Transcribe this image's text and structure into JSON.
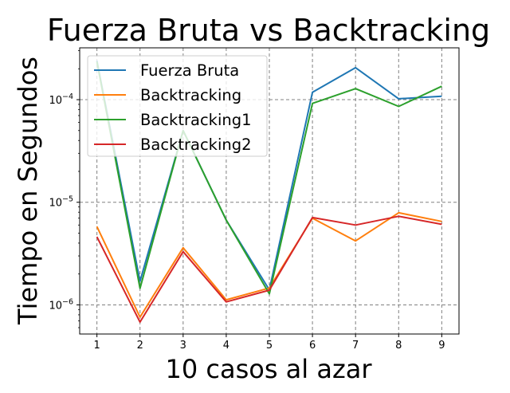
{
  "chart_data": {
    "type": "line",
    "title": "Fuerza Bruta vs Backtracking",
    "xlabel": "10 casos al azar",
    "ylabel": "Tiempo en Segundos",
    "x": [
      1,
      2,
      3,
      4,
      5,
      6,
      7,
      8,
      9
    ],
    "x_ticks": [
      "1",
      "2",
      "3",
      "4",
      "5",
      "6",
      "7",
      "8",
      "9"
    ],
    "xlim": [
      0.6,
      9.4
    ],
    "y_scale": "log",
    "ylim": [
      5.2e-07,
      0.00032
    ],
    "y_ticks": [
      {
        "value": 1e-06,
        "base": "10",
        "exp": "−6"
      },
      {
        "value": 1e-05,
        "base": "10",
        "exp": "−5"
      },
      {
        "value": 0.0001,
        "base": "10",
        "exp": "−4"
      }
    ],
    "grid": true,
    "legend_position": "top-left",
    "series": [
      {
        "name": "Fuerza Bruta",
        "color": "#1f77b4",
        "values": [
          0.00024,
          1.7e-06,
          5e-05,
          6.7e-06,
          1.4e-06,
          0.000118,
          0.000205,
          0.000102,
          0.000108
        ]
      },
      {
        "name": "Backtracking",
        "color": "#ff7f0e",
        "values": [
          5.8e-06,
          7.6e-07,
          3.6e-06,
          1.12e-06,
          1.46e-06,
          7e-06,
          4.2e-06,
          7.9e-06,
          6.5e-06
        ]
      },
      {
        "name": "Backtracking1",
        "color": "#2ca02c",
        "values": [
          0.000235,
          1.45e-06,
          5e-05,
          6.7e-06,
          1.28e-06,
          9.2e-05,
          0.000128,
          8.6e-05,
          0.000135
        ]
      },
      {
        "name": "Backtracking2",
        "color": "#d62728",
        "values": [
          4.6e-06,
          6.8e-07,
          3.3e-06,
          1.07e-06,
          1.39e-06,
          7.1e-06,
          6e-06,
          7.3e-06,
          6.1e-06
        ]
      }
    ]
  }
}
